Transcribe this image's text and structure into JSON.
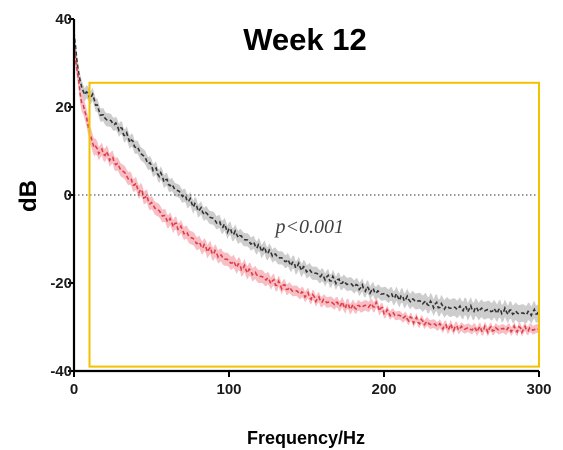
{
  "chart_data": {
    "type": "line",
    "title": "Week 12",
    "xlabel": "Frequency/Hz",
    "ylabel": "dB",
    "xlim": [
      0,
      300
    ],
    "ylim": [
      -40,
      40
    ],
    "x_ticks": [
      "0",
      "100",
      "200",
      "300"
    ],
    "y_ticks": [
      "-40",
      "-20",
      "0",
      "20",
      "40"
    ],
    "reference_line": {
      "y": 0,
      "style": "dotted"
    },
    "highlight_box": {
      "x": [
        10,
        300
      ],
      "y": [
        -39,
        25.5
      ],
      "color": "#f2c200"
    },
    "annotation": {
      "text": "p<0.001",
      "x": 130,
      "y": -7
    },
    "grid": false,
    "legend": "none",
    "x": [
      0,
      2,
      5,
      8,
      10,
      13,
      16,
      20,
      25,
      30,
      40,
      50,
      60,
      70,
      80,
      90,
      100,
      120,
      140,
      160,
      180,
      195,
      200,
      220,
      240,
      260,
      280,
      290,
      300
    ],
    "series": [
      {
        "color": "#333333",
        "band_color": "#c8c8c8",
        "values": [
          37,
          30,
          24,
          23,
          22.5,
          22,
          19,
          17.5,
          16.5,
          15,
          11,
          6.5,
          3,
          0,
          -3,
          -5.5,
          -8,
          -12,
          -15.5,
          -18.5,
          -20.5,
          -22,
          -22.5,
          -24,
          -25.5,
          -26,
          -26.5,
          -27,
          -26.5
        ],
        "band": [
          1.5,
          1.5,
          1.5,
          1.5,
          1.5,
          1.5,
          1.5,
          1.5,
          1.5,
          1.5,
          1.5,
          1.5,
          1.5,
          1.5,
          1.5,
          1.5,
          1.5,
          1.5,
          1.5,
          1.5,
          1.5,
          1.5,
          1.5,
          1.8,
          2.0,
          2.0,
          2.0,
          2.0,
          2.0
        ]
      },
      {
        "color": "#e33d45",
        "band_color": "#f6b8bf",
        "values": [
          35,
          28,
          21,
          18,
          14,
          11,
          10,
          9.5,
          8,
          6,
          2,
          -2,
          -5.5,
          -8,
          -11,
          -13,
          -15,
          -18.5,
          -21.5,
          -24,
          -25.5,
          -25,
          -26.5,
          -28.5,
          -30,
          -30.5,
          -30.5,
          -30.5,
          -30.5
        ],
        "band": [
          2.0,
          2.0,
          2.0,
          2.0,
          2.0,
          2.0,
          1.5,
          1.5,
          1.5,
          1.5,
          1.5,
          1.5,
          1.5,
          1.5,
          1.5,
          1.5,
          1.5,
          1.5,
          1.2,
          1.2,
          1.2,
          1.2,
          1.0,
          1.0,
          1.0,
          1.0,
          1.0,
          1.0,
          1.0
        ]
      }
    ]
  }
}
